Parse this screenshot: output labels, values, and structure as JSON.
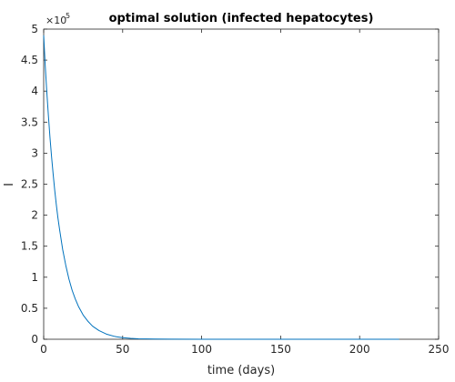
{
  "chart_data": {
    "type": "line",
    "title": "optimal solution (infected hepatocytes)",
    "xlabel": "time (days)",
    "ylabel": "I",
    "xlim": [
      0,
      250
    ],
    "ylim": [
      0,
      500000
    ],
    "xticks": [
      0,
      50,
      100,
      150,
      200,
      250
    ],
    "yticks": [
      0,
      50000,
      100000,
      150000,
      200000,
      250000,
      300000,
      350000,
      400000,
      450000,
      500000
    ],
    "xtick_labels": [
      "0",
      "50",
      "100",
      "150",
      "200",
      "250"
    ],
    "ytick_labels": [
      "0",
      "0.5",
      "1",
      "1.5",
      "2",
      "2.5",
      "3",
      "3.5",
      "4",
      "4.5",
      "5"
    ],
    "y_exponent": {
      "base": "×10",
      "power": "5"
    },
    "grid": false,
    "series": [
      {
        "color": "#0072BD",
        "x": [
          0,
          1,
          2,
          3,
          4,
          5,
          6,
          7,
          8,
          9,
          10,
          12,
          14,
          16,
          18,
          20,
          22,
          25,
          28,
          31,
          35,
          40,
          45,
          50,
          55,
          60,
          70,
          80,
          100,
          125,
          150,
          175,
          200,
          225
        ],
        "y": [
          490000,
          440000,
          398000,
          360000,
          325000,
          294000,
          266000,
          240000,
          217000,
          196000,
          178000,
          145000,
          119000,
          97000,
          79000,
          65000,
          53000,
          39000,
          29000,
          21000,
          14000,
          8000,
          4500,
          2500,
          1400,
          800,
          300,
          100,
          20,
          5,
          0,
          0,
          0,
          0
        ]
      }
    ]
  }
}
